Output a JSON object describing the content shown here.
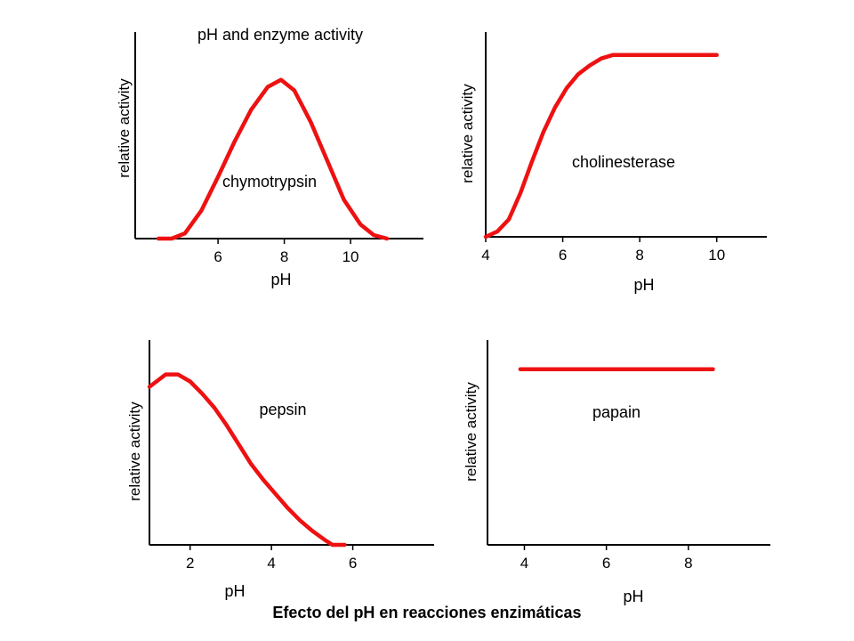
{
  "caption": "Efecto del pH en reacciones enzimáticas",
  "colors": {
    "curve": "#ee1111",
    "axis": "#000000",
    "text": "#000000"
  },
  "chart_data": [
    {
      "type": "line",
      "title": "pH and enzyme activity",
      "series_label": "chymotrypsin",
      "xlabel": "pH",
      "ylabel": "relative activity",
      "xticks": [
        6,
        8,
        10
      ],
      "xlim": [
        3.5,
        12.2
      ],
      "ylim": [
        0,
        1.1
      ],
      "x": [
        4.2,
        4.6,
        5.0,
        5.5,
        6.0,
        6.5,
        7.0,
        7.5,
        7.9,
        8.3,
        8.8,
        9.3,
        9.8,
        10.3,
        10.7,
        11.1
      ],
      "y": [
        0.0,
        0.0,
        0.03,
        0.16,
        0.35,
        0.55,
        0.73,
        0.86,
        0.9,
        0.84,
        0.66,
        0.44,
        0.22,
        0.08,
        0.02,
        0.0
      ]
    },
    {
      "type": "line",
      "series_label": "cholinesterase",
      "xlabel": "pH",
      "ylabel": "relative activity",
      "xticks": [
        4,
        6,
        8,
        10
      ],
      "xlim": [
        4,
        11.3
      ],
      "ylim": [
        0,
        1.1
      ],
      "x": [
        4.0,
        4.3,
        4.6,
        4.9,
        5.2,
        5.5,
        5.8,
        6.1,
        6.4,
        6.7,
        7.0,
        7.3,
        7.6,
        8.0,
        10.0
      ],
      "y": [
        0.0,
        0.03,
        0.1,
        0.25,
        0.43,
        0.6,
        0.74,
        0.85,
        0.93,
        0.98,
        1.02,
        1.04,
        1.04,
        1.04,
        1.04
      ]
    },
    {
      "type": "line",
      "series_label": "pepsin",
      "xlabel": "pH",
      "ylabel": "relative activity",
      "xticks": [
        2,
        4,
        6
      ],
      "xlim": [
        1.0,
        8.0
      ],
      "ylim": [
        0,
        1.1
      ],
      "x": [
        1.0,
        1.4,
        1.7,
        2.0,
        2.3,
        2.6,
        2.9,
        3.2,
        3.5,
        3.8,
        4.1,
        4.4,
        4.7,
        5.0,
        5.3,
        5.5,
        5.8
      ],
      "y": [
        0.9,
        0.97,
        0.97,
        0.93,
        0.86,
        0.78,
        0.68,
        0.57,
        0.46,
        0.37,
        0.29,
        0.21,
        0.14,
        0.08,
        0.03,
        0.0,
        0.0
      ]
    },
    {
      "type": "line",
      "series_label": "papain",
      "xlabel": "pH",
      "ylabel": "relative activity",
      "xticks": [
        4,
        6,
        8
      ],
      "xlim": [
        3.1,
        10.0
      ],
      "ylim": [
        0,
        1.1
      ],
      "x": [
        3.9,
        8.6
      ],
      "y": [
        1.0,
        1.0
      ]
    }
  ]
}
